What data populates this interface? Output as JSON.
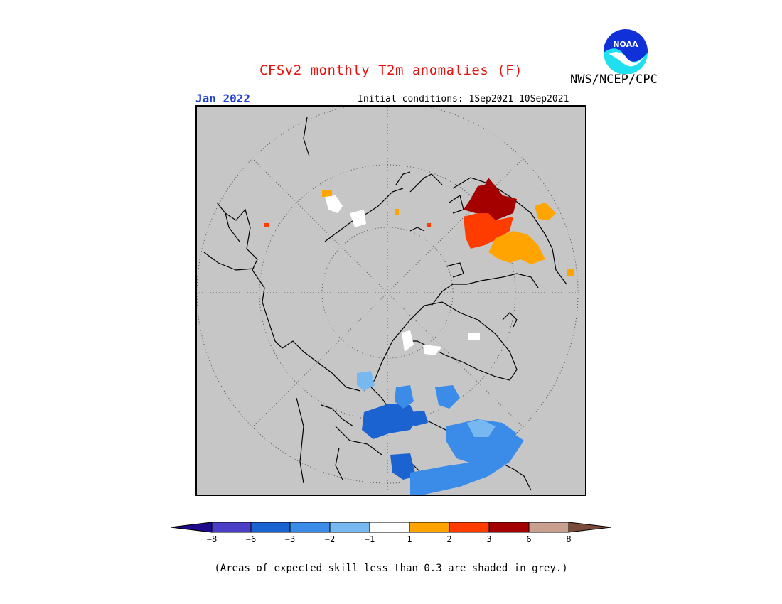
{
  "header": {
    "title": "CFSv2 monthly T2m anomalies (F)",
    "agency": "NWS/NCEP/CPC",
    "logo_text": "NOAA",
    "month": "Jan 2022",
    "initial_conditions": "Initial conditions: 1Sep2021–10Sep2021"
  },
  "colors": {
    "map_background": "#c6c6c6",
    "title": "#e8100c",
    "month": "#1f3fd0"
  },
  "legend": {
    "labels": [
      "−8",
      "−6",
      "−3",
      "−2",
      "−1",
      "1",
      "2",
      "3",
      "6",
      "8"
    ],
    "colors": [
      "#1e0a8c",
      "#4b3fc8",
      "#1b63d0",
      "#3b8ce8",
      "#78b8f0",
      "#ffffff",
      "#ffa400",
      "#ff3c00",
      "#a50000",
      "#c8a090",
      "#7a4a3a"
    ]
  },
  "footnote": "(Areas of expected skill less than 0.3 are shaded in grey.)"
}
